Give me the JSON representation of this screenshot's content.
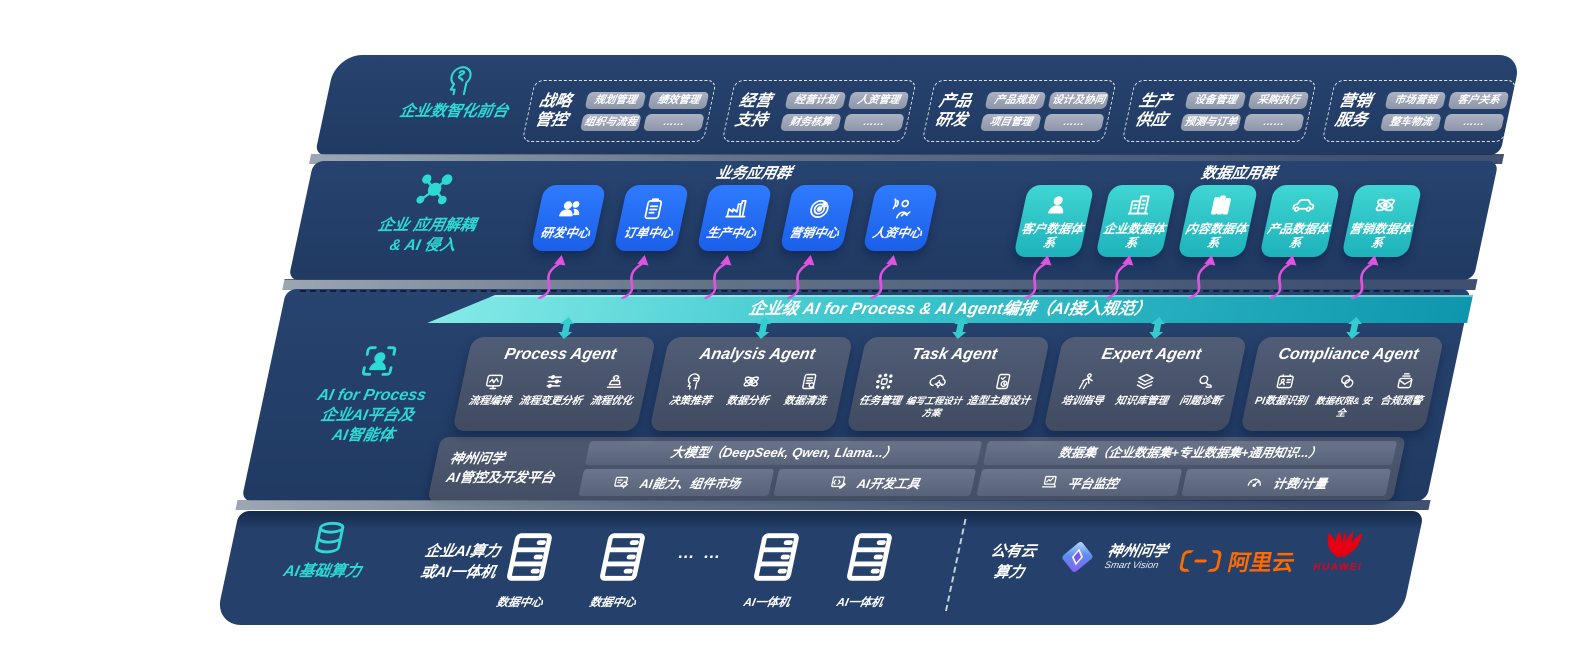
{
  "front": {
    "label": "企业数智化前台",
    "groups": [
      {
        "title": [
          "战略",
          "管控"
        ],
        "items": [
          "规划管理",
          "绩效管理",
          "组织与流程",
          "……"
        ]
      },
      {
        "title": [
          "经营",
          "支持"
        ],
        "items": [
          "经营计划",
          "人资管理",
          "财务核算",
          "……"
        ]
      },
      {
        "title": [
          "产品",
          "研发"
        ],
        "items": [
          "产品规划",
          "设计及协同",
          "项目管理",
          "……"
        ]
      },
      {
        "title": [
          "生产",
          "供应"
        ],
        "items": [
          "设备管理",
          "采购执行",
          "预测与订单",
          "……"
        ]
      },
      {
        "title": [
          "营销",
          "服务"
        ],
        "items": [
          "市场营销",
          "客户关系",
          "整车物流",
          "……"
        ]
      }
    ]
  },
  "apps": {
    "label_lines": [
      "企业 应用解耦",
      "& AI 侵入"
    ],
    "business": {
      "title": "业务应用群",
      "boxes": [
        {
          "icon": "team-icon",
          "label": "研发中心"
        },
        {
          "icon": "clipboard-icon",
          "label": "订单中心"
        },
        {
          "icon": "factory-icon",
          "label": "生产中心"
        },
        {
          "icon": "target-icon",
          "label": "营销中心"
        },
        {
          "icon": "hr-icon",
          "label": "人资中心"
        }
      ]
    },
    "data": {
      "title": "数据应用群",
      "boxes": [
        {
          "icon": "person-icon",
          "label": "客户数据体系"
        },
        {
          "icon": "building-icon",
          "label": "企业数据体系"
        },
        {
          "icon": "columns-icon",
          "label": "内容数据体系"
        },
        {
          "icon": "car-icon",
          "label": "产品数据体系"
        },
        {
          "icon": "atom-icon",
          "label": "营销数据体系"
        }
      ]
    }
  },
  "ai": {
    "label_en": "AI for Process",
    "label_lines": [
      "企业AI平台及",
      "AI智能体"
    ],
    "band_title": "企业级 AI for Process & AI Agent编排（AI接入规范）",
    "agents": [
      {
        "title": "Process Agent",
        "items": [
          {
            "icon": "flow-icon",
            "label": "流程编排"
          },
          {
            "icon": "sliders-icon",
            "label": "流程变更分析"
          },
          {
            "icon": "optimize-icon",
            "label": "流程优化"
          }
        ]
      },
      {
        "title": "Analysis Agent",
        "items": [
          {
            "icon": "advise-icon",
            "label": "决策推荐"
          },
          {
            "icon": "atom-icon",
            "label": "数据分析"
          },
          {
            "icon": "clean-icon",
            "label": "数据清洗"
          }
        ]
      },
      {
        "title": "Task Agent",
        "items": [
          {
            "icon": "robot-icon",
            "label": "任务管理"
          },
          {
            "icon": "cloud-gear-icon",
            "label": "编写工程设计方案"
          },
          {
            "icon": "design-icon",
            "label": "造型主题设计"
          }
        ]
      },
      {
        "title": "Expert Agent",
        "items": [
          {
            "icon": "training-icon",
            "label": "培训指导"
          },
          {
            "icon": "layers-icon",
            "label": "知识库管理"
          },
          {
            "icon": "diagnose-icon",
            "label": "问题诊断"
          }
        ]
      },
      {
        "title": "Compliance Agent",
        "items": [
          {
            "icon": "idcard-icon",
            "label": "PI数据识别"
          },
          {
            "icon": "secure-icon",
            "label": "数据权限& 安全"
          },
          {
            "icon": "alert-icon",
            "label": "合规预警"
          }
        ]
      }
    ],
    "platform": {
      "name_lines": [
        "神州问学",
        "AI管控及开发平台"
      ],
      "model_bar": "大模型（DeepSeek, Qwen, Llama...）",
      "dataset_bar": "数据集（企业数据集+专业数据集+通用知识...）",
      "cells": [
        {
          "icon": "components-icon",
          "label": "AI能力、组件市场"
        },
        {
          "icon": "devtools-icon",
          "label": "AI开发工具"
        },
        {
          "icon": "monitor-icon",
          "label": "平台监控"
        },
        {
          "icon": "meter-icon",
          "label": "计费/计量"
        }
      ]
    }
  },
  "infra": {
    "label": "AI基础算力",
    "compute_lines": [
      "企业AI算力",
      "或AI一体机"
    ],
    "nodes": [
      {
        "icon": "server-icon",
        "label": "数据中心"
      },
      {
        "icon": "server-icon",
        "label": "数据中心"
      },
      {
        "icon": "dots",
        "label": "… …"
      },
      {
        "icon": "server-icon",
        "label": "AI一体机"
      },
      {
        "icon": "server-icon",
        "label": "AI一体机"
      }
    ],
    "cloud_lines": [
      "公有云",
      "算力"
    ],
    "vendors": {
      "shenzhou": {
        "name": "神州问学",
        "sub": "Smart Vision"
      },
      "aliyun": {
        "name": "阿里云"
      },
      "huawei": {
        "name": "HUAWEI"
      }
    }
  },
  "colors": {
    "navy": "#24406B",
    "blue": "#1E6FF2",
    "teal": "#2CC8C8",
    "accent": "#2DD9D4",
    "magenta": "#E052E0",
    "aliyun_orange": "#FF6A00",
    "huawei_red": "#E60012"
  }
}
